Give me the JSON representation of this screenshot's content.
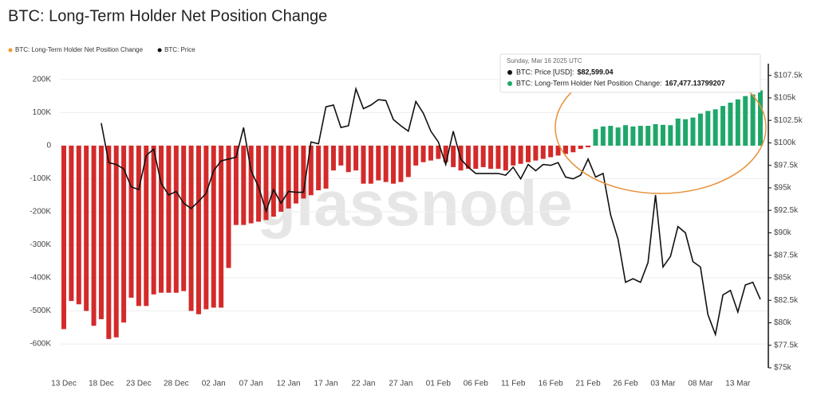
{
  "chart_data": {
    "type": "combo",
    "title": "BTC: Long-Term Holder Net Position Change",
    "watermark": "glassnode",
    "categories": [
      "13 Dec",
      null,
      null,
      null,
      null,
      "18 Dec",
      null,
      null,
      null,
      null,
      "23 Dec",
      null,
      null,
      null,
      null,
      "28 Dec",
      null,
      null,
      null,
      null,
      "02 Jan",
      null,
      null,
      null,
      null,
      "07 Jan",
      null,
      null,
      null,
      null,
      "12 Jan",
      null,
      null,
      null,
      null,
      "17 Jan",
      null,
      null,
      null,
      null,
      "22 Jan",
      null,
      null,
      null,
      null,
      "27 Jan",
      null,
      null,
      null,
      null,
      "01 Feb",
      null,
      null,
      null,
      null,
      "06 Feb",
      null,
      null,
      null,
      null,
      "11 Feb",
      null,
      null,
      null,
      null,
      "16 Feb",
      null,
      null,
      null,
      null,
      "21 Feb",
      null,
      null,
      null,
      null,
      "26 Feb",
      null,
      null,
      null,
      null,
      "03 Mar",
      null,
      null,
      null,
      null,
      "08 Mar",
      null,
      null,
      null,
      null,
      "13 Mar",
      null,
      null,
      null
    ],
    "series": [
      {
        "name": "BTC: Long-Term Holder Net Position Change",
        "type": "bar",
        "color": "#d42a2a",
        "positive_color": "#1fa76a",
        "legend_color": "#f39a2e",
        "values": [
          -555000,
          -470000,
          -480000,
          -500000,
          -545000,
          -525000,
          -585000,
          -580000,
          -535000,
          -460000,
          -485000,
          -485000,
          -450000,
          -445000,
          -445000,
          -445000,
          -440000,
          -500000,
          -510000,
          -495000,
          -490000,
          -490000,
          -370000,
          -240000,
          -240000,
          -235000,
          -230000,
          -225000,
          -215000,
          -200000,
          -190000,
          -175000,
          -160000,
          -150000,
          -135000,
          -130000,
          -75000,
          -60000,
          -80000,
          -75000,
          -115000,
          -115000,
          -105000,
          -110000,
          -115000,
          -110000,
          -95000,
          -60000,
          -50000,
          -45000,
          -40000,
          -50000,
          -65000,
          -75000,
          -70000,
          -70000,
          -65000,
          -70000,
          -70000,
          -75000,
          -60000,
          -55000,
          -50000,
          -45000,
          -40000,
          -35000,
          -30000,
          -25000,
          -20000,
          -10000,
          -5000,
          50000,
          58000,
          60000,
          55000,
          62000,
          58000,
          60000,
          60000,
          65000,
          63000,
          62000,
          82000,
          80000,
          85000,
          97000,
          105000,
          110000,
          120000,
          130000,
          140000,
          150000,
          155000,
          167477.13799207
        ]
      },
      {
        "name": "BTC: Price",
        "type": "line",
        "axis": "y2",
        "color": "#111111",
        "legend_color": "#111111",
        "values": [
          null,
          null,
          null,
          null,
          null,
          102200,
          97800,
          97600,
          97100,
          95100,
          94800,
          98600,
          99300,
          95500,
          94200,
          94600,
          93300,
          92700,
          93500,
          94400,
          96900,
          98000,
          98200,
          98400,
          101700,
          96900,
          95100,
          92400,
          94800,
          93300,
          94600,
          94500,
          94500,
          100100,
          99900,
          104000,
          104200,
          101700,
          101900,
          106000,
          103800,
          104200,
          104800,
          104700,
          102600,
          101900,
          101300,
          104600,
          103300,
          101300,
          100100,
          97600,
          101300,
          98200,
          97300,
          96600,
          96600,
          96600,
          96600,
          96400,
          97300,
          96000,
          97600,
          96900,
          97600,
          97500,
          97800,
          96200,
          96000,
          96400,
          98200,
          96200,
          96600,
          92000,
          89300,
          84500,
          84900,
          84500,
          86700,
          94200,
          86200,
          87400,
          90700,
          90000,
          86800,
          86200,
          80900,
          78700,
          83100,
          83600,
          81200,
          84200,
          84500,
          82599.04
        ]
      }
    ],
    "ylim": [
      -672000,
      248000
    ],
    "yticks": [
      {
        "value": 200000,
        "label": "200K"
      },
      {
        "value": 100000,
        "label": "100K"
      },
      0,
      {
        "value": -100000,
        "label": "-100K"
      },
      {
        "value": -200000,
        "label": "-200K"
      },
      {
        "value": -300000,
        "label": "-300K"
      },
      {
        "value": -400000,
        "label": "-400K"
      },
      {
        "value": -500000,
        "label": "-500K"
      },
      {
        "value": -600000,
        "label": "-600K"
      }
    ],
    "y2lim": [
      75000,
      108800
    ],
    "y2ticks": [
      {
        "value": 107500,
        "label": "$107.5k"
      },
      {
        "value": 105000,
        "label": "$105k"
      },
      {
        "value": 102500,
        "label": "$102.5k"
      },
      {
        "value": 100000,
        "label": "$100k"
      },
      {
        "value": 97500,
        "label": "$97.5k"
      },
      {
        "value": 95000,
        "label": "$95k"
      },
      {
        "value": 92500,
        "label": "$92.5k"
      },
      {
        "value": 90000,
        "label": "$90k"
      },
      {
        "value": 87500,
        "label": "$87.5k"
      },
      {
        "value": 85000,
        "label": "$85k"
      },
      {
        "value": 82500,
        "label": "$82.5k"
      },
      {
        "value": 80000,
        "label": "$80k"
      },
      {
        "value": 77500,
        "label": "$77.5k"
      },
      {
        "value": 75000,
        "label": "$75k"
      }
    ],
    "grid": true,
    "legend": "top-left",
    "tooltip": {
      "date": "Sunday, Mar 16 2025 UTC",
      "items": [
        {
          "name": "BTC: Price [USD]:",
          "value": "$82,599.04"
        },
        {
          "name": "BTC: Long-Term Holder Net Position Change:",
          "value": "167,477.13799207"
        }
      ]
    }
  }
}
